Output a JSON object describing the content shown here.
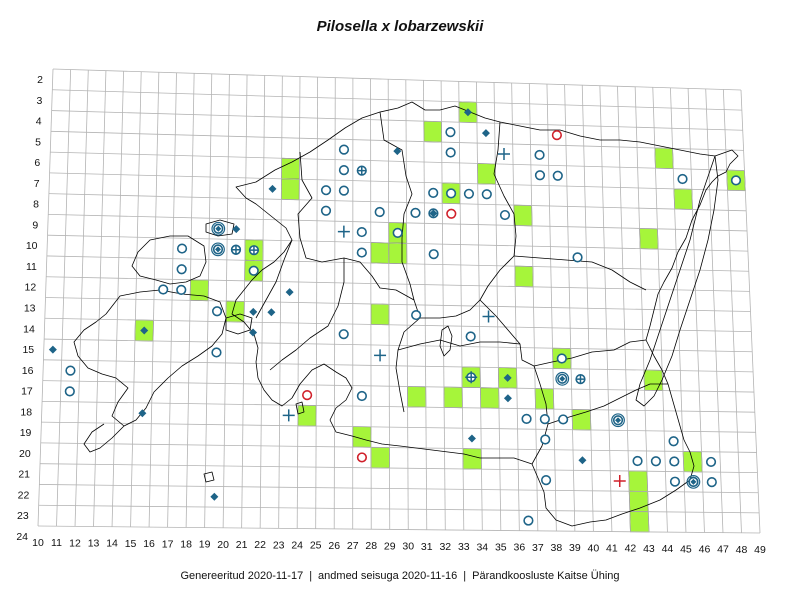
{
  "title": "Pilosella x lobarzewskii",
  "x_labels": [
    "10",
    "11",
    "12",
    "13",
    "14",
    "15",
    "16",
    "17",
    "18",
    "19",
    "20",
    "21",
    "22",
    "23",
    "24",
    "25",
    "26",
    "27",
    "28",
    "29",
    "30",
    "31",
    "32",
    "33",
    "34",
    "35",
    "36",
    "37",
    "38",
    "39",
    "40",
    "41",
    "42",
    "43",
    "44",
    "45",
    "46",
    "47",
    "48",
    "49"
  ],
  "y_labels": [
    "2",
    "3",
    "4",
    "5",
    "6",
    "7",
    "8",
    "9",
    "10",
    "11",
    "12",
    "13",
    "14",
    "15",
    "16",
    "17",
    "18",
    "19",
    "20",
    "21",
    "22",
    "23",
    "24"
  ],
  "footer": {
    "generated": "Genereeritud 2020-11-17",
    "data_state": "andmed seisuga 2020-11-16",
    "org": "Pärandkoosluste Kaitse Ühing",
    "separator": "|"
  },
  "colors": {
    "filled_cell": "#a6f53a",
    "marker": "#1e6488",
    "marker_red": "#d0202a",
    "grid": "#b4b4b4",
    "coast": "#000000"
  },
  "records": {
    "filled_cells": [
      [
        33,
        3
      ],
      [
        31,
        4
      ],
      [
        44,
        5
      ],
      [
        48,
        6
      ],
      [
        23,
        6
      ],
      [
        34,
        6
      ],
      [
        23,
        7
      ],
      [
        32,
        7
      ],
      [
        45,
        7
      ],
      [
        36,
        8
      ],
      [
        43,
        9
      ],
      [
        29,
        9
      ],
      [
        28,
        10
      ],
      [
        29,
        10
      ],
      [
        21,
        10
      ],
      [
        21,
        11
      ],
      [
        36,
        11
      ],
      [
        18,
        12
      ],
      [
        20,
        13
      ],
      [
        28,
        13
      ],
      [
        15,
        14
      ],
      [
        38,
        15
      ],
      [
        43,
        16
      ],
      [
        33,
        16
      ],
      [
        35,
        16
      ],
      [
        37,
        17
      ],
      [
        30,
        17
      ],
      [
        32,
        17
      ],
      [
        34,
        17
      ],
      [
        39,
        18
      ],
      [
        24,
        18
      ],
      [
        27,
        19
      ],
      [
        45,
        20
      ],
      [
        33,
        20
      ],
      [
        28,
        20
      ],
      [
        42,
        21
      ],
      [
        42,
        22
      ],
      [
        42,
        23
      ]
    ],
    "circles": [
      [
        32,
        4
      ],
      [
        26,
        5
      ],
      [
        32,
        5
      ],
      [
        37,
        5
      ],
      [
        26,
        6
      ],
      [
        37,
        6
      ],
      [
        38,
        6
      ],
      [
        45,
        6
      ],
      [
        48,
        6
      ],
      [
        25,
        7
      ],
      [
        26,
        7
      ],
      [
        31,
        7
      ],
      [
        32,
        7
      ],
      [
        33,
        7
      ],
      [
        34,
        7
      ],
      [
        25,
        8
      ],
      [
        28,
        8
      ],
      [
        30,
        8
      ],
      [
        31,
        8
      ],
      [
        35,
        8
      ],
      [
        17,
        10
      ],
      [
        20,
        10
      ],
      [
        31,
        10
      ],
      [
        27,
        10
      ],
      [
        39,
        10
      ],
      [
        17,
        11
      ],
      [
        21,
        11
      ],
      [
        16,
        12
      ],
      [
        17,
        12
      ],
      [
        19,
        13
      ],
      [
        30,
        13
      ],
      [
        26,
        14
      ],
      [
        33,
        14
      ],
      [
        38,
        15
      ],
      [
        19,
        15
      ],
      [
        11,
        16
      ],
      [
        33,
        16
      ],
      [
        11,
        17
      ],
      [
        27,
        17
      ],
      [
        36,
        18
      ],
      [
        37,
        18
      ],
      [
        38,
        18
      ],
      [
        37,
        19
      ],
      [
        44,
        19
      ],
      [
        42,
        20
      ],
      [
        43,
        20
      ],
      [
        44,
        20
      ],
      [
        46,
        20
      ],
      [
        37,
        21
      ],
      [
        44,
        21
      ],
      [
        45,
        21
      ],
      [
        46,
        21
      ],
      [
        36,
        23
      ],
      [
        29,
        9
      ],
      [
        27,
        9
      ]
    ],
    "circles_red": [
      [
        38,
        4
      ],
      [
        32,
        8
      ],
      [
        24,
        17
      ],
      [
        27,
        20
      ]
    ],
    "diamonds": [
      [
        33,
        3
      ],
      [
        34,
        4
      ],
      [
        29,
        5
      ],
      [
        22,
        7
      ],
      [
        31,
        8
      ],
      [
        20,
        9
      ],
      [
        23,
        12
      ],
      [
        21,
        13
      ],
      [
        22,
        13
      ],
      [
        15,
        14
      ],
      [
        21,
        14
      ],
      [
        10,
        15
      ],
      [
        35,
        16
      ],
      [
        35,
        17
      ],
      [
        15,
        18
      ],
      [
        33,
        19
      ],
      [
        39,
        20
      ],
      [
        19,
        22
      ]
    ],
    "circle_plus": [
      [
        27,
        6
      ],
      [
        20,
        10
      ],
      [
        21,
        10
      ],
      [
        39,
        16
      ]
    ],
    "circle_diamond": [
      [
        19,
        9
      ],
      [
        19,
        10
      ],
      [
        38,
        16
      ],
      [
        41,
        18
      ],
      [
        45,
        21
      ]
    ],
    "plus": [
      [
        35,
        5
      ],
      [
        26,
        9
      ],
      [
        34,
        13
      ],
      [
        28,
        15
      ],
      [
        33,
        16
      ],
      [
        23,
        18
      ]
    ],
    "plus_red": [
      [
        41,
        21
      ]
    ]
  }
}
